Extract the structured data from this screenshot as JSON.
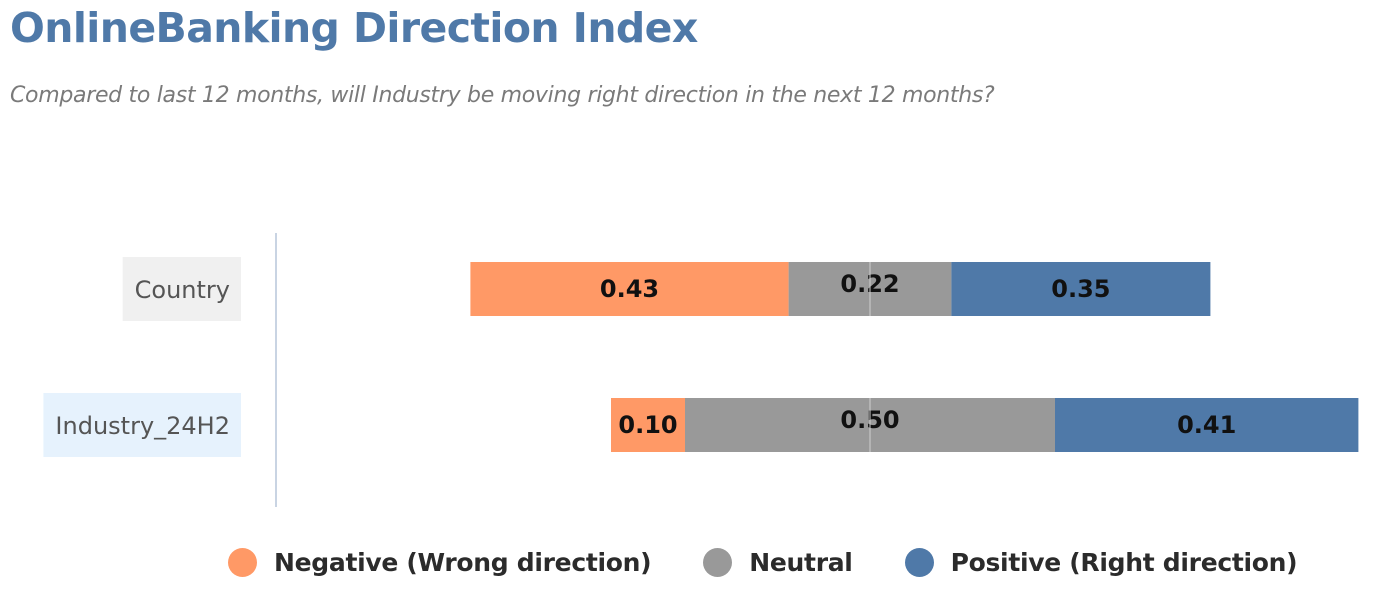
{
  "title": "OnlineBanking Direction Index",
  "subtitle": "Compared to last 12 months, will Industry be moving right direction in the next 12 months?",
  "colors": {
    "negative": "#ff9966",
    "neutral": "#999999",
    "positive": "#4f79a8",
    "category_bg_country": "#f0f0f0",
    "category_bg_industry": "#e6f2fd"
  },
  "legend": [
    {
      "label": "Negative (Wrong direction)",
      "color": "#ff9966"
    },
    {
      "label": "Neutral",
      "color": "#999999"
    },
    {
      "label": "Positive (Right direction)",
      "color": "#4f79a8"
    }
  ],
  "chart_data": {
    "type": "bar",
    "orientation": "horizontal",
    "stacked": true,
    "diverging": true,
    "categories": [
      "Country",
      "Industry_24H2"
    ],
    "series": [
      {
        "name": "Negative (Wrong direction)",
        "values": [
          0.43,
          0.1
        ],
        "labels": [
          "0.43",
          "0.10"
        ]
      },
      {
        "name": "Neutral",
        "values": [
          0.22,
          0.5
        ],
        "labels": [
          "0.22",
          "0.50"
        ]
      },
      {
        "name": "Positive (Right direction)",
        "values": [
          0.35,
          0.41
        ],
        "labels": [
          "0.35",
          "0.41"
        ]
      }
    ],
    "xlabel": "",
    "ylabel": "",
    "grid": false,
    "legend_position": "bottom"
  }
}
